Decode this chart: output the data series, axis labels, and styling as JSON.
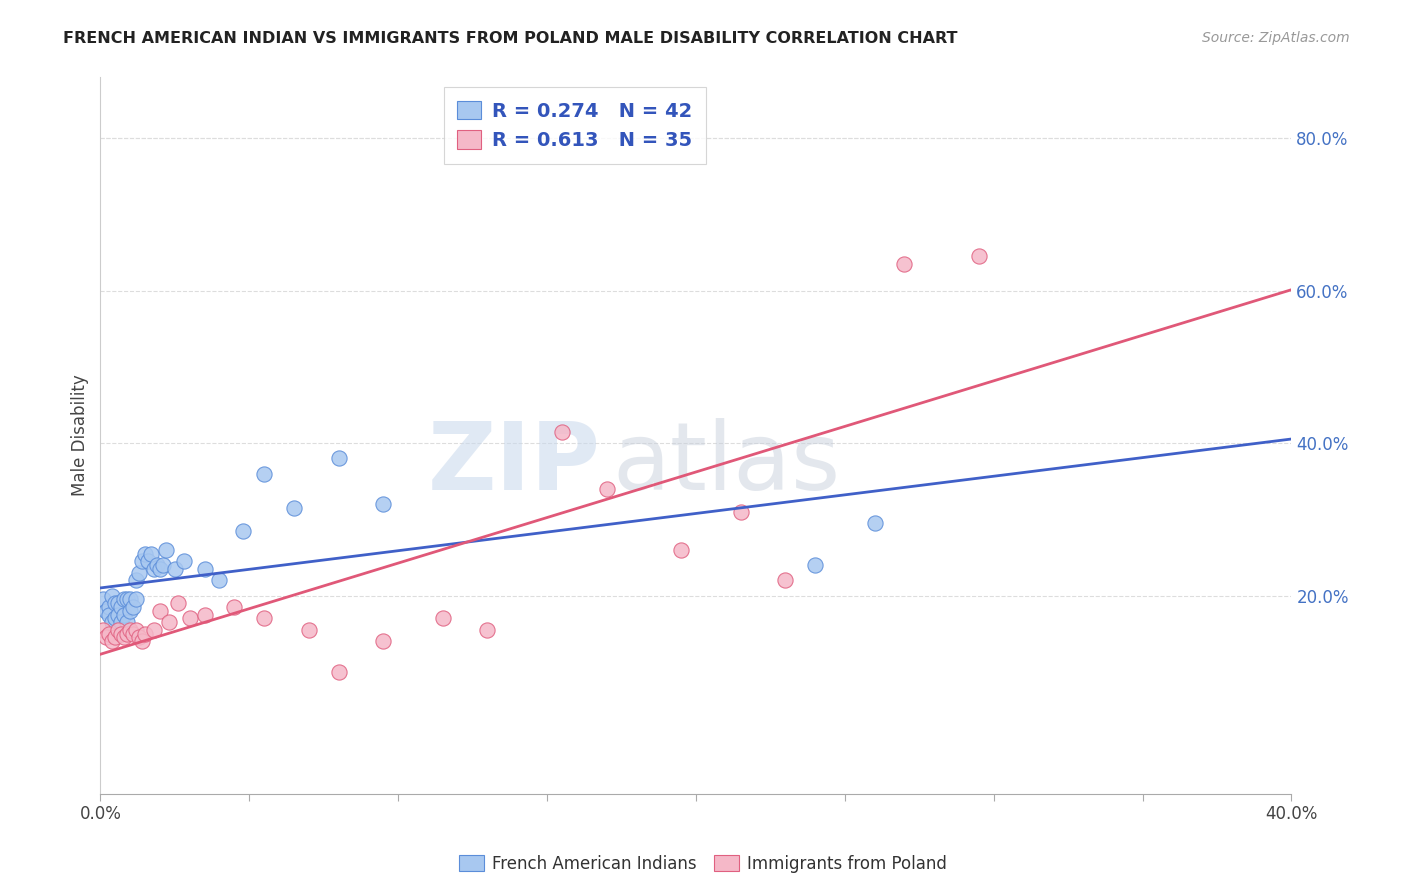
{
  "title": "FRENCH AMERICAN INDIAN VS IMMIGRANTS FROM POLAND MALE DISABILITY CORRELATION CHART",
  "source": "Source: ZipAtlas.com",
  "ylabel": "Male Disability",
  "xlim": [
    0.0,
    0.4
  ],
  "ylim": [
    -0.06,
    0.88
  ],
  "xticks": [
    0.0,
    0.05,
    0.1,
    0.15,
    0.2,
    0.25,
    0.3,
    0.35,
    0.4
  ],
  "xtick_labels_show": [
    "0.0%",
    "",
    "",
    "",
    "",
    "",
    "",
    "",
    "40.0%"
  ],
  "yticks_right": [
    0.2,
    0.4,
    0.6,
    0.8
  ],
  "ytick_labels_right": [
    "20.0%",
    "40.0%",
    "60.0%",
    "80.0%"
  ],
  "blue_R": 0.274,
  "blue_N": 42,
  "pink_R": 0.613,
  "pink_N": 35,
  "blue_color": "#A8C8F0",
  "pink_color": "#F5B8C8",
  "blue_edge_color": "#5B8DD9",
  "pink_edge_color": "#E06080",
  "blue_line_color": "#4060C8",
  "pink_line_color": "#E05878",
  "legend_label_blue": "French American Indians",
  "legend_label_pink": "Immigrants from Poland",
  "blue_x": [
    0.001,
    0.002,
    0.003,
    0.003,
    0.004,
    0.004,
    0.005,
    0.005,
    0.006,
    0.006,
    0.007,
    0.007,
    0.008,
    0.008,
    0.009,
    0.009,
    0.01,
    0.01,
    0.011,
    0.012,
    0.012,
    0.013,
    0.014,
    0.015,
    0.016,
    0.017,
    0.018,
    0.019,
    0.02,
    0.021,
    0.022,
    0.025,
    0.028,
    0.035,
    0.04,
    0.048,
    0.055,
    0.065,
    0.08,
    0.095,
    0.24,
    0.26
  ],
  "blue_y": [
    0.195,
    0.18,
    0.185,
    0.175,
    0.2,
    0.165,
    0.19,
    0.17,
    0.19,
    0.175,
    0.185,
    0.165,
    0.195,
    0.175,
    0.195,
    0.165,
    0.195,
    0.18,
    0.185,
    0.22,
    0.195,
    0.23,
    0.245,
    0.255,
    0.245,
    0.255,
    0.235,
    0.24,
    0.235,
    0.24,
    0.26,
    0.235,
    0.245,
    0.235,
    0.22,
    0.285,
    0.36,
    0.315,
    0.38,
    0.32,
    0.24,
    0.295
  ],
  "pink_x": [
    0.001,
    0.002,
    0.003,
    0.004,
    0.005,
    0.006,
    0.007,
    0.008,
    0.009,
    0.01,
    0.011,
    0.012,
    0.013,
    0.014,
    0.015,
    0.018,
    0.02,
    0.023,
    0.026,
    0.03,
    0.035,
    0.045,
    0.055,
    0.07,
    0.08,
    0.095,
    0.115,
    0.13,
    0.155,
    0.17,
    0.195,
    0.215,
    0.23,
    0.27,
    0.295
  ],
  "pink_y": [
    0.155,
    0.145,
    0.15,
    0.14,
    0.145,
    0.155,
    0.15,
    0.145,
    0.15,
    0.155,
    0.15,
    0.155,
    0.145,
    0.14,
    0.15,
    0.155,
    0.18,
    0.165,
    0.19,
    0.17,
    0.175,
    0.185,
    0.17,
    0.155,
    0.1,
    0.14,
    0.17,
    0.155,
    0.415,
    0.34,
    0.26,
    0.31,
    0.22,
    0.635,
    0.645
  ],
  "watermark_line1": "ZIP",
  "watermark_line2": "atlas",
  "background_color": "#FFFFFF",
  "grid_color": "#DDDDDD"
}
